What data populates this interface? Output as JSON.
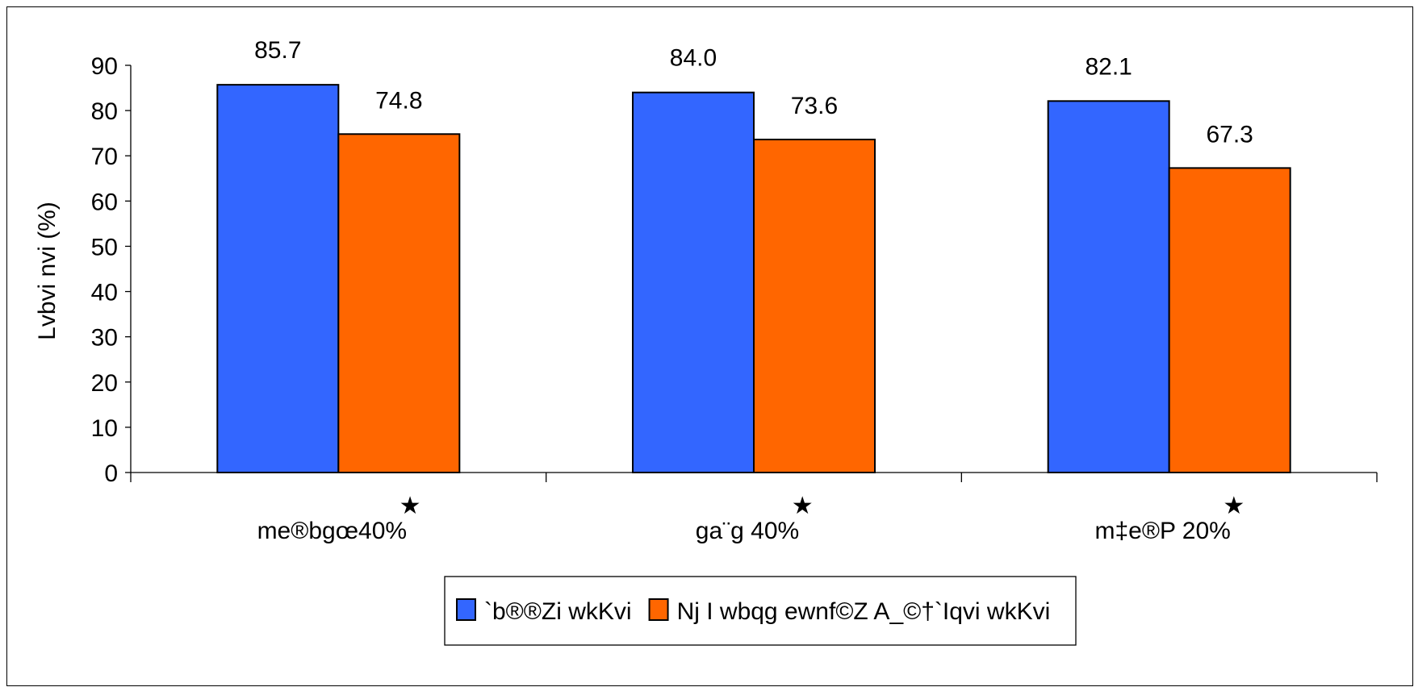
{
  "chart_data": {
    "type": "bar",
    "ylabel": "Lvbvi nvi (%)",
    "ylim": [
      0,
      90
    ],
    "yticks": [
      0,
      10,
      20,
      30,
      40,
      50,
      60,
      70,
      80,
      90
    ],
    "categories": [
      "me®bgœ40%",
      "ga¨g 40%",
      "m‡e®P 20%"
    ],
    "category_markers": [
      "★",
      "★",
      "★"
    ],
    "series": [
      {
        "name": "`b®®Zi wkKvi",
        "color": "#3366ff",
        "values": [
          85.7,
          84.0,
          82.1
        ]
      },
      {
        "name": "Nj I wbqg ewnf©Z A_©†`Iqvi wkKvi",
        "color": "#ff6600",
        "values": [
          74.8,
          73.6,
          67.3
        ]
      }
    ],
    "data_labels": [
      [
        "85.7",
        "84.0",
        "82.1"
      ],
      [
        "74.8",
        "73.6",
        "67.3"
      ]
    ],
    "grid": false,
    "legend_position": "bottom"
  }
}
